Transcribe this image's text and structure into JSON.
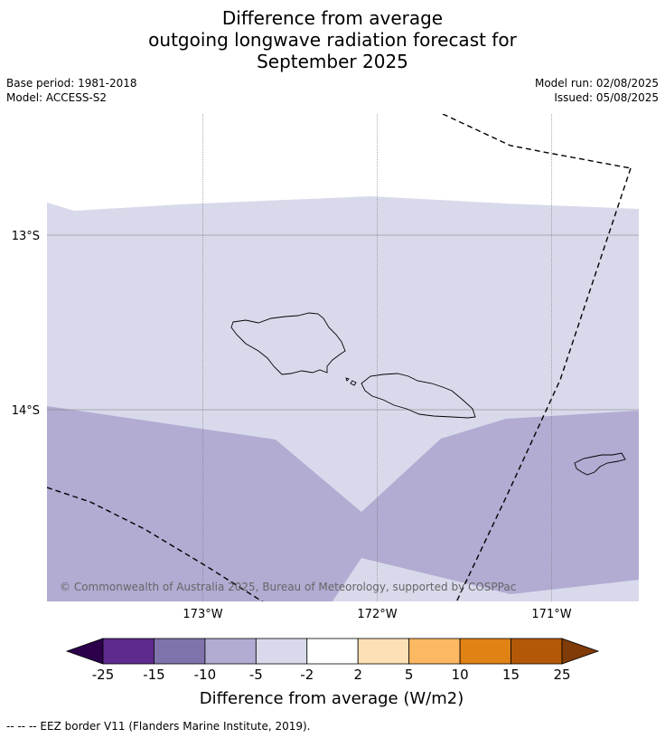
{
  "title_lines": [
    "Difference from average",
    "outgoing longwave radiation forecast for",
    "September 2025"
  ],
  "meta_left": {
    "base_period": "Base period: 1981-2018",
    "model": "Model: ACCESS-S2"
  },
  "meta_right": {
    "model_run": "Model run: 02/08/2025",
    "issued": "Issued: 05/08/2025"
  },
  "map": {
    "lat_labels": [
      {
        "value": -13,
        "label": "13°S"
      },
      {
        "value": -14,
        "label": "14°S"
      }
    ],
    "lon_labels": [
      {
        "value": -173,
        "label": "173°W"
      },
      {
        "value": -172,
        "label": "172°W"
      },
      {
        "value": -171,
        "label": "171°W"
      }
    ],
    "copyright": "© Commonwealth of Australia 2025, Bureau of Meteorology, supported by COSPPac"
  },
  "colorbar": {
    "ticks": [
      "-25",
      "-15",
      "-10",
      "-5",
      "-2",
      "2",
      "5",
      "10",
      "15",
      "25"
    ],
    "colors": [
      "#2d004b",
      "#5e2a8e",
      "#8073ac",
      "#b2abd2",
      "#d8daeb",
      "#ffffff",
      "#fee0b6",
      "#fdb863",
      "#e08214",
      "#b35806",
      "#7f3b08"
    ],
    "label": "Difference from average (W/m2)"
  },
  "footnote": "--  --  -- EEZ border V11 (Flanders Marine Institute, 2019)."
}
